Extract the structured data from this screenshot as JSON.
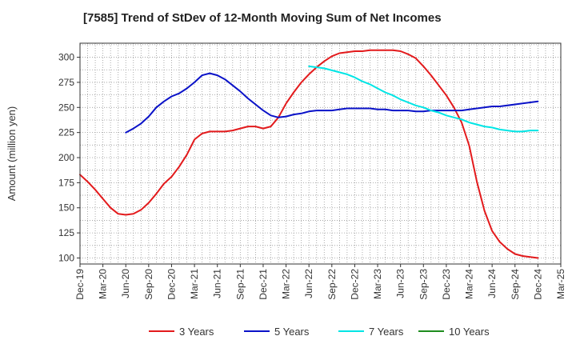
{
  "chart_data": {
    "type": "line",
    "title": "[7585]  Trend of StDev of 12-Month Moving Sum of Net Incomes",
    "xlabel": "",
    "ylabel": "Amount (million yen)",
    "ylim": [
      94,
      314
    ],
    "yticks": [
      100,
      125,
      150,
      175,
      200,
      225,
      250,
      275,
      300
    ],
    "xlim": [
      "2019-12",
      "2025-03"
    ],
    "xticks": [
      "Dec-19",
      "Mar-20",
      "Jun-20",
      "Sep-20",
      "Dec-20",
      "Mar-21",
      "Jun-21",
      "Sep-21",
      "Dec-21",
      "Mar-22",
      "Jun-22",
      "Sep-22",
      "Dec-22",
      "Mar-23",
      "Jun-23",
      "Sep-23",
      "Dec-23",
      "Mar-24",
      "Jun-24",
      "Sep-24",
      "Dec-24",
      "Mar-25"
    ],
    "grid": true,
    "legend_position": "bottom",
    "series": [
      {
        "name": "3 Years",
        "color": "#e31a1c",
        "points": [
          [
            "2019-12",
            183
          ],
          [
            "2020-01",
            176
          ],
          [
            "2020-02",
            168
          ],
          [
            "2020-03",
            159
          ],
          [
            "2020-04",
            150
          ],
          [
            "2020-05",
            144
          ],
          [
            "2020-06",
            143
          ],
          [
            "2020-07",
            144
          ],
          [
            "2020-08",
            148
          ],
          [
            "2020-09",
            155
          ],
          [
            "2020-10",
            164
          ],
          [
            "2020-11",
            174
          ],
          [
            "2020-12",
            181
          ],
          [
            "2021-01",
            191
          ],
          [
            "2021-02",
            203
          ],
          [
            "2021-03",
            218
          ],
          [
            "2021-04",
            224
          ],
          [
            "2021-05",
            226
          ],
          [
            "2021-06",
            226
          ],
          [
            "2021-07",
            226
          ],
          [
            "2021-08",
            227
          ],
          [
            "2021-09",
            229
          ],
          [
            "2021-10",
            231
          ],
          [
            "2021-11",
            231
          ],
          [
            "2021-12",
            229
          ],
          [
            "2022-01",
            231
          ],
          [
            "2022-02",
            240
          ],
          [
            "2022-03",
            254
          ],
          [
            "2022-04",
            265
          ],
          [
            "2022-05",
            275
          ],
          [
            "2022-06",
            283
          ],
          [
            "2022-07",
            290
          ],
          [
            "2022-08",
            296
          ],
          [
            "2022-09",
            301
          ],
          [
            "2022-10",
            304
          ],
          [
            "2022-11",
            305
          ],
          [
            "2022-12",
            306
          ],
          [
            "2023-01",
            306
          ],
          [
            "2023-02",
            307
          ],
          [
            "2023-03",
            307
          ],
          [
            "2023-04",
            307
          ],
          [
            "2023-05",
            307
          ],
          [
            "2023-06",
            306
          ],
          [
            "2023-07",
            303
          ],
          [
            "2023-08",
            299
          ],
          [
            "2023-09",
            291
          ],
          [
            "2023-10",
            282
          ],
          [
            "2023-11",
            272
          ],
          [
            "2023-12",
            262
          ],
          [
            "2024-01",
            250
          ],
          [
            "2024-02",
            235
          ],
          [
            "2024-03",
            212
          ],
          [
            "2024-04",
            176
          ],
          [
            "2024-05",
            147
          ],
          [
            "2024-06",
            127
          ],
          [
            "2024-07",
            116
          ],
          [
            "2024-08",
            109
          ],
          [
            "2024-09",
            104
          ],
          [
            "2024-10",
            102
          ],
          [
            "2024-11",
            101
          ],
          [
            "2024-12",
            100
          ]
        ]
      },
      {
        "name": "5 Years",
        "color": "#0a12c8",
        "points": [
          [
            "2020-06",
            225
          ],
          [
            "2020-07",
            229
          ],
          [
            "2020-08",
            234
          ],
          [
            "2020-09",
            241
          ],
          [
            "2020-10",
            250
          ],
          [
            "2020-11",
            256
          ],
          [
            "2020-12",
            261
          ],
          [
            "2021-01",
            264
          ],
          [
            "2021-02",
            269
          ],
          [
            "2021-03",
            275
          ],
          [
            "2021-04",
            282
          ],
          [
            "2021-05",
            284
          ],
          [
            "2021-06",
            282
          ],
          [
            "2021-07",
            278
          ],
          [
            "2021-08",
            272
          ],
          [
            "2021-09",
            266
          ],
          [
            "2021-10",
            259
          ],
          [
            "2021-11",
            253
          ],
          [
            "2021-12",
            247
          ],
          [
            "2022-01",
            242
          ],
          [
            "2022-02",
            240
          ],
          [
            "2022-03",
            241
          ],
          [
            "2022-04",
            243
          ],
          [
            "2022-05",
            244
          ],
          [
            "2022-06",
            246
          ],
          [
            "2022-07",
            247
          ],
          [
            "2022-08",
            247
          ],
          [
            "2022-09",
            247
          ],
          [
            "2022-10",
            248
          ],
          [
            "2022-11",
            249
          ],
          [
            "2022-12",
            249
          ],
          [
            "2023-01",
            249
          ],
          [
            "2023-02",
            249
          ],
          [
            "2023-03",
            248
          ],
          [
            "2023-04",
            248
          ],
          [
            "2023-05",
            247
          ],
          [
            "2023-06",
            247
          ],
          [
            "2023-07",
            247
          ],
          [
            "2023-08",
            246
          ],
          [
            "2023-09",
            246
          ],
          [
            "2023-10",
            247
          ],
          [
            "2023-11",
            247
          ],
          [
            "2023-12",
            247
          ],
          [
            "2024-01",
            247
          ],
          [
            "2024-02",
            247
          ],
          [
            "2024-03",
            248
          ],
          [
            "2024-04",
            249
          ],
          [
            "2024-05",
            250
          ],
          [
            "2024-06",
            251
          ],
          [
            "2024-07",
            251
          ],
          [
            "2024-08",
            252
          ],
          [
            "2024-09",
            253
          ],
          [
            "2024-10",
            254
          ],
          [
            "2024-11",
            255
          ],
          [
            "2024-12",
            256
          ]
        ]
      },
      {
        "name": "7 Years",
        "color": "#00e5e5",
        "points": [
          [
            "2022-06",
            291
          ],
          [
            "2022-07",
            290
          ],
          [
            "2022-08",
            289
          ],
          [
            "2022-09",
            287
          ],
          [
            "2022-10",
            285
          ],
          [
            "2022-11",
            283
          ],
          [
            "2022-12",
            280
          ],
          [
            "2023-01",
            276
          ],
          [
            "2023-02",
            273
          ],
          [
            "2023-03",
            269
          ],
          [
            "2023-04",
            265
          ],
          [
            "2023-05",
            262
          ],
          [
            "2023-06",
            258
          ],
          [
            "2023-07",
            255
          ],
          [
            "2023-08",
            252
          ],
          [
            "2023-09",
            250
          ],
          [
            "2023-10",
            247
          ],
          [
            "2023-11",
            245
          ],
          [
            "2023-12",
            242
          ],
          [
            "2024-01",
            240
          ],
          [
            "2024-02",
            238
          ],
          [
            "2024-03",
            235
          ],
          [
            "2024-04",
            233
          ],
          [
            "2024-05",
            231
          ],
          [
            "2024-06",
            230
          ],
          [
            "2024-07",
            228
          ],
          [
            "2024-08",
            227
          ],
          [
            "2024-09",
            226
          ],
          [
            "2024-10",
            226
          ],
          [
            "2024-11",
            227
          ],
          [
            "2024-12",
            227
          ]
        ]
      },
      {
        "name": "10 Years",
        "color": "#1e8c1e",
        "points": []
      }
    ]
  }
}
